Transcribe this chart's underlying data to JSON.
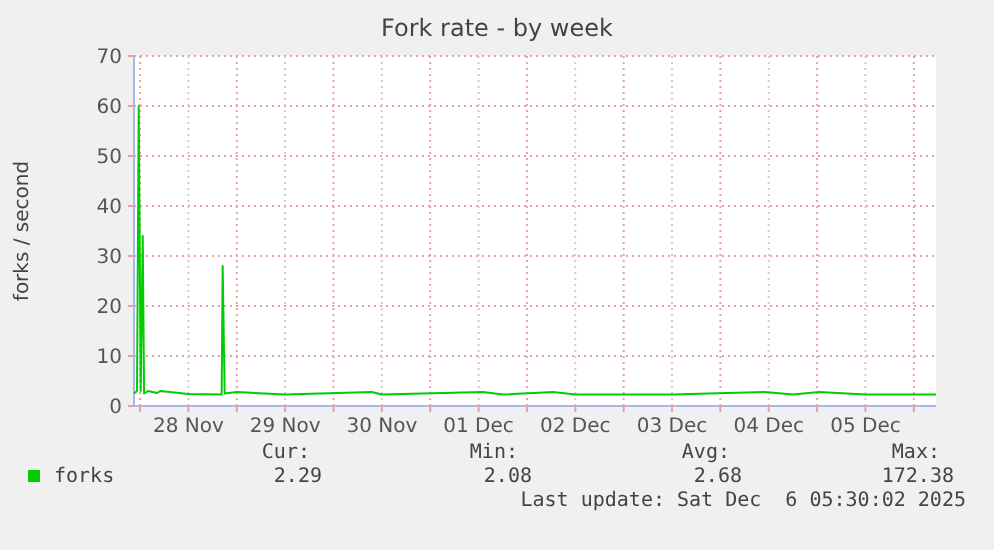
{
  "chart_data": {
    "type": "line",
    "title": "Fork rate - by week",
    "ylabel": "forks / second",
    "x": [
      "2025-11-27T22:30",
      "2025-11-27T23:15",
      "2025-11-27T23:40",
      "2025-11-28T00:10",
      "2025-11-28T00:40",
      "2025-11-28T01:00",
      "2025-11-28T02:00",
      "2025-11-28T04:15",
      "2025-11-28T05:00",
      "2025-11-28T12:00",
      "2025-11-28T20:15",
      "2025-11-28T20:30",
      "2025-11-28T21:00",
      "2025-11-29T00:00",
      "2025-11-29T12:00",
      "2025-11-30T09:30",
      "2025-11-30T12:00",
      "2025-12-01T13:00",
      "2025-12-01T18:00",
      "2025-12-02T06:30",
      "2025-12-02T12:00",
      "2025-12-03T12:00",
      "2025-12-04T11:00",
      "2025-12-04T18:00",
      "2025-12-05T00:30",
      "2025-12-05T12:00",
      "2025-12-06T05:30"
    ],
    "series": [
      {
        "name": "forks",
        "color": "#00cc00",
        "values": [
          2.5,
          3,
          60,
          3,
          34,
          2.5,
          3,
          2.6,
          3,
          2.4,
          2.3,
          28,
          2.5,
          2.8,
          2.3,
          2.8,
          2.3,
          2.8,
          2.3,
          2.8,
          2.3,
          2.3,
          2.8,
          2.3,
          2.8,
          2.3,
          2.3
        ]
      }
    ],
    "xlim": [
      "2025-11-27T22:30",
      "2025-12-06T05:30"
    ],
    "xticks": [
      {
        "value": "2025-11-28T00:00",
        "label": null
      },
      {
        "value": "2025-11-28T12:00",
        "label": "28 Nov"
      },
      {
        "value": "2025-11-29T00:00",
        "label": null
      },
      {
        "value": "2025-11-29T12:00",
        "label": "29 Nov"
      },
      {
        "value": "2025-11-30T00:00",
        "label": null
      },
      {
        "value": "2025-11-30T12:00",
        "label": "30 Nov"
      },
      {
        "value": "2025-12-01T00:00",
        "label": null
      },
      {
        "value": "2025-12-01T12:00",
        "label": "01 Dec"
      },
      {
        "value": "2025-12-02T00:00",
        "label": null
      },
      {
        "value": "2025-12-02T12:00",
        "label": "02 Dec"
      },
      {
        "value": "2025-12-03T00:00",
        "label": null
      },
      {
        "value": "2025-12-03T12:00",
        "label": "03 Dec"
      },
      {
        "value": "2025-12-04T00:00",
        "label": null
      },
      {
        "value": "2025-12-04T12:00",
        "label": "04 Dec"
      },
      {
        "value": "2025-12-05T00:00",
        "label": null
      },
      {
        "value": "2025-12-05T12:00",
        "label": "05 Dec"
      },
      {
        "value": "2025-12-06T00:00",
        "label": null
      }
    ],
    "ylim": [
      0,
      70
    ],
    "yticks": [
      0,
      10,
      20,
      30,
      40,
      50,
      60,
      70
    ],
    "grid": true,
    "legend": "bottom",
    "annotations": [
      "Cur:",
      "Min:",
      "Avg:",
      "Max:",
      "2.29",
      "2.08",
      "2.68",
      "172.38",
      "Last update: Sat Dec  6 05:30:02 2025"
    ]
  }
}
